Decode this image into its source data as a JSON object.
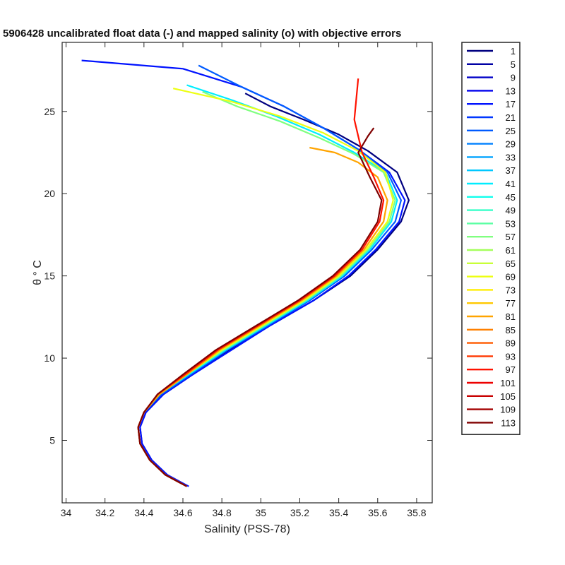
{
  "chart_data": {
    "type": "line",
    "title": "5906428 uncalibrated float data (-) and mapped salinity (o) with objective errors",
    "xlabel": "Salinity (PSS-78)",
    "ylabel": "θ ° C",
    "xlim": [
      33.98,
      35.88
    ],
    "ylim": [
      1.2,
      29.2
    ],
    "xticks": [
      "34",
      "34.2",
      "34.4",
      "34.6",
      "34.8",
      "35",
      "35.2",
      "35.4",
      "35.6",
      "35.8"
    ],
    "yticks": [
      "5",
      "10",
      "15",
      "20",
      "25"
    ],
    "grid": false,
    "colormap": "jet",
    "legend": {
      "position": "outside-right",
      "entries": [
        "1",
        "5",
        "9",
        "13",
        "17",
        "21",
        "25",
        "29",
        "33",
        "37",
        "41",
        "45",
        "49",
        "53",
        "57",
        "61",
        "65",
        "69",
        "73",
        "77",
        "81",
        "85",
        "89",
        "93",
        "97",
        "101",
        "105",
        "109",
        "113"
      ]
    },
    "profile_count": 113,
    "series": [
      {
        "name": "1",
        "salinity": [
          34.62,
          34.52,
          34.44,
          34.39,
          34.38,
          34.41,
          34.5,
          34.65,
          34.84,
          35.05,
          35.27,
          35.46,
          35.6,
          35.72,
          35.76,
          35.7,
          35.55,
          35.4,
          35.22,
          35.05,
          34.92
        ],
        "theta": [
          2.2,
          2.9,
          3.8,
          4.8,
          5.8,
          6.7,
          7.8,
          9.0,
          10.5,
          12.0,
          13.5,
          15.0,
          16.6,
          18.3,
          19.6,
          21.3,
          22.6,
          23.6,
          24.5,
          25.3,
          26.1
        ]
      },
      {
        "name": "17",
        "salinity": [
          34.63,
          34.52,
          34.44,
          34.39,
          34.38,
          34.41,
          34.5,
          34.65,
          34.85,
          35.05,
          35.27,
          35.45,
          35.59,
          35.71,
          35.74,
          35.66,
          35.5,
          35.32,
          35.12,
          34.9,
          34.6,
          34.08
        ],
        "theta": [
          2.2,
          2.9,
          3.8,
          4.8,
          5.8,
          6.7,
          7.8,
          9.0,
          10.5,
          12.0,
          13.5,
          15.0,
          16.6,
          18.3,
          19.6,
          21.3,
          22.7,
          24.0,
          25.3,
          26.5,
          27.6,
          28.1
        ]
      },
      {
        "name": "25",
        "salinity": [
          34.62,
          34.51,
          34.43,
          34.38,
          34.37,
          34.4,
          34.49,
          34.64,
          34.83,
          35.04,
          35.25,
          35.43,
          35.57,
          35.69,
          35.72,
          35.65,
          35.5,
          35.32,
          35.12,
          34.9,
          34.68
        ],
        "theta": [
          2.2,
          2.9,
          3.8,
          4.8,
          5.8,
          6.7,
          7.8,
          9.0,
          10.5,
          12.0,
          13.5,
          15.0,
          16.6,
          18.3,
          19.6,
          21.3,
          22.7,
          24.0,
          25.3,
          26.5,
          27.8
        ]
      },
      {
        "name": "41",
        "salinity": [
          34.62,
          34.51,
          34.43,
          34.38,
          34.37,
          34.4,
          34.48,
          34.63,
          34.82,
          35.03,
          35.24,
          35.42,
          35.56,
          35.67,
          35.7,
          35.64,
          35.48,
          35.3,
          35.08,
          34.85,
          34.62
        ],
        "theta": [
          2.2,
          2.9,
          3.8,
          4.8,
          5.8,
          6.7,
          7.8,
          9.0,
          10.5,
          12.0,
          13.5,
          15.0,
          16.6,
          18.3,
          19.6,
          21.3,
          22.5,
          23.6,
          24.7,
          25.7,
          26.6
        ]
      },
      {
        "name": "57",
        "salinity": [
          34.62,
          34.51,
          34.43,
          34.38,
          34.37,
          34.4,
          34.48,
          34.62,
          34.81,
          35.02,
          35.23,
          35.41,
          35.55,
          35.66,
          35.69,
          35.63,
          35.48,
          35.3,
          35.1,
          34.88,
          34.7
        ],
        "theta": [
          2.2,
          2.9,
          3.8,
          4.8,
          5.8,
          6.7,
          7.8,
          9.0,
          10.5,
          12.0,
          13.5,
          15.0,
          16.6,
          18.3,
          19.6,
          21.3,
          22.4,
          23.4,
          24.4,
          25.3,
          26.2
        ]
      },
      {
        "name": "69",
        "salinity": [
          34.62,
          34.51,
          34.43,
          34.38,
          34.37,
          34.4,
          34.48,
          34.62,
          34.8,
          35.01,
          35.22,
          35.4,
          35.54,
          35.65,
          35.68,
          35.64,
          35.5,
          35.32,
          35.1,
          34.85,
          34.55
        ],
        "theta": [
          2.2,
          2.9,
          3.8,
          4.8,
          5.8,
          6.7,
          7.8,
          9.0,
          10.5,
          12.0,
          13.5,
          15.0,
          16.6,
          18.3,
          19.6,
          21.3,
          22.6,
          23.7,
          24.7,
          25.6,
          26.4
        ]
      },
      {
        "name": "81",
        "salinity": [
          34.62,
          34.51,
          34.43,
          34.38,
          34.37,
          34.4,
          34.48,
          34.62,
          34.79,
          35.0,
          35.21,
          35.39,
          35.53,
          35.63,
          35.65,
          35.6,
          35.5,
          35.38,
          35.25
        ],
        "theta": [
          2.2,
          2.9,
          3.8,
          4.8,
          5.8,
          6.7,
          7.8,
          9.0,
          10.5,
          12.0,
          13.5,
          15.0,
          16.6,
          18.3,
          19.6,
          21.0,
          21.9,
          22.5,
          22.8
        ]
      },
      {
        "name": "97",
        "salinity": [
          34.62,
          34.51,
          34.43,
          34.38,
          34.37,
          34.4,
          34.47,
          34.61,
          34.78,
          34.99,
          35.2,
          35.38,
          35.52,
          35.61,
          35.63,
          35.58,
          35.52,
          35.48,
          35.5
        ],
        "theta": [
          2.2,
          2.9,
          3.8,
          4.8,
          5.8,
          6.7,
          7.8,
          9.0,
          10.5,
          12.0,
          13.5,
          15.0,
          16.6,
          18.3,
          19.6,
          21.0,
          22.5,
          24.5,
          27.0
        ]
      },
      {
        "name": "113",
        "salinity": [
          34.62,
          34.51,
          34.43,
          34.38,
          34.37,
          34.4,
          34.47,
          34.6,
          34.77,
          34.98,
          35.19,
          35.37,
          35.51,
          35.6,
          35.62,
          35.56,
          35.5,
          35.55,
          35.58
        ],
        "theta": [
          2.2,
          2.9,
          3.8,
          4.8,
          5.8,
          6.7,
          7.8,
          9.0,
          10.5,
          12.0,
          13.5,
          15.0,
          16.6,
          18.3,
          19.6,
          21.0,
          22.5,
          23.5,
          24.0
        ]
      }
    ]
  }
}
